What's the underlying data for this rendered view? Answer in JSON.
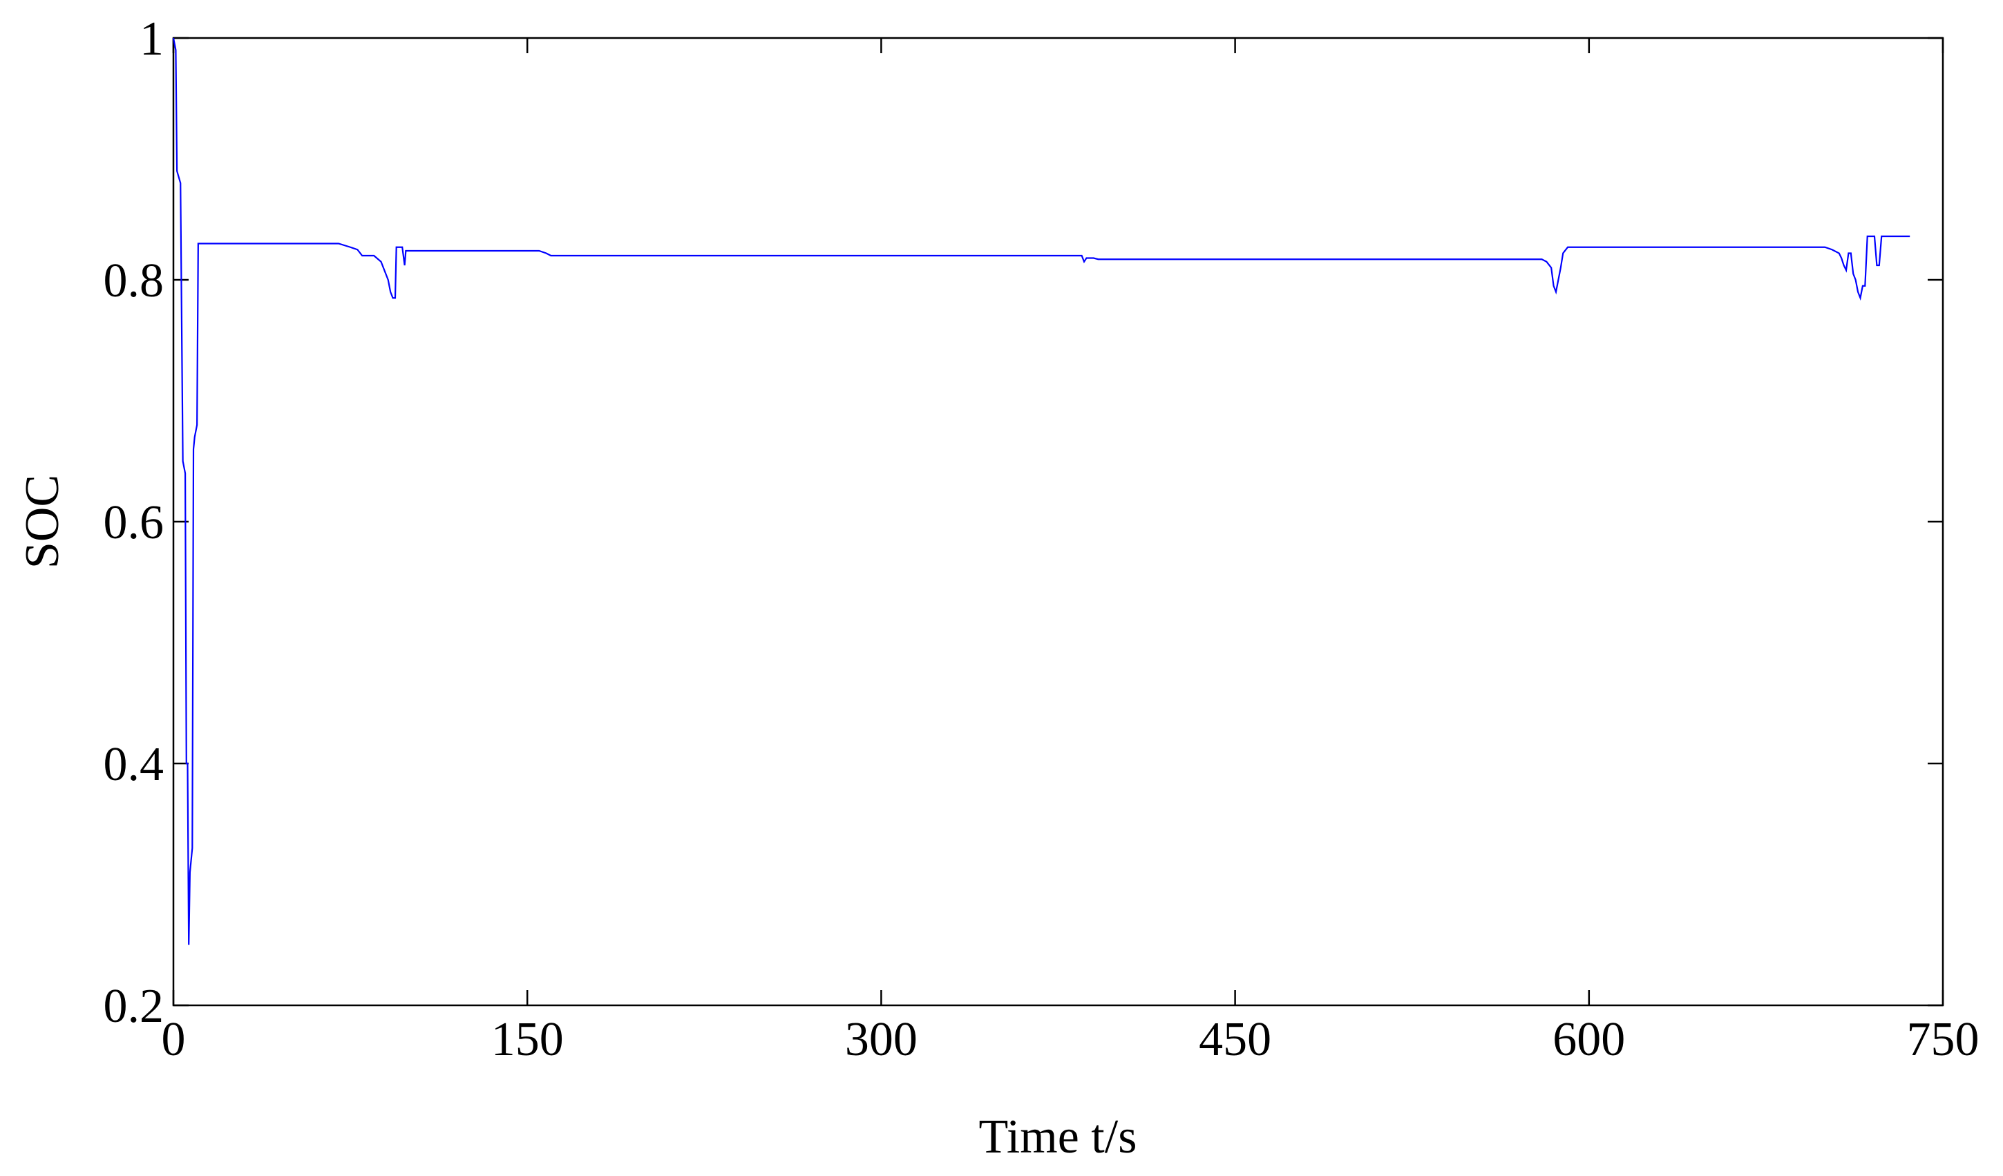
{
  "chart_data": {
    "type": "line",
    "xlabel": "Time t/s",
    "ylabel": "SOC",
    "xlim": [
      0,
      750
    ],
    "xticks": [
      0,
      150,
      300,
      450,
      600,
      750
    ],
    "ylim": [
      0.2,
      1
    ],
    "yticks": [
      0.2,
      0.4,
      0.6,
      0.8,
      1
    ],
    "series": [
      {
        "color": "#0000ff",
        "x": [
          0,
          1,
          1.5,
          3,
          4,
          5,
          5.5,
          6,
          6.5,
          7,
          8,
          8.5,
          9,
          10,
          10.5,
          70,
          75,
          78,
          80,
          85,
          88,
          90,
          91,
          92,
          93,
          94,
          94.5,
          97,
          98,
          98.5,
          155,
          158,
          160,
          385,
          386,
          387,
          390,
          392,
          580,
          582,
          584,
          585,
          586,
          587,
          588,
          589,
          591,
          700,
          703,
          706,
          707,
          708,
          709,
          710,
          711,
          712,
          713,
          714,
          715,
          716,
          717,
          718,
          721,
          722,
          723,
          724,
          736
        ],
        "values": [
          1.0,
          0.99,
          0.89,
          0.88,
          0.65,
          0.64,
          0.4,
          0.4,
          0.25,
          0.31,
          0.33,
          0.66,
          0.67,
          0.68,
          0.83,
          0.83,
          0.827,
          0.825,
          0.82,
          0.82,
          0.815,
          0.805,
          0.8,
          0.79,
          0.785,
          0.785,
          0.827,
          0.827,
          0.812,
          0.824,
          0.824,
          0.822,
          0.82,
          0.82,
          0.815,
          0.818,
          0.818,
          0.817,
          0.817,
          0.815,
          0.81,
          0.795,
          0.79,
          0.8,
          0.81,
          0.822,
          0.827,
          0.827,
          0.825,
          0.822,
          0.818,
          0.812,
          0.808,
          0.822,
          0.822,
          0.805,
          0.8,
          0.79,
          0.785,
          0.795,
          0.795,
          0.836,
          0.836,
          0.812,
          0.812,
          0.836,
          0.836
        ]
      }
    ]
  }
}
